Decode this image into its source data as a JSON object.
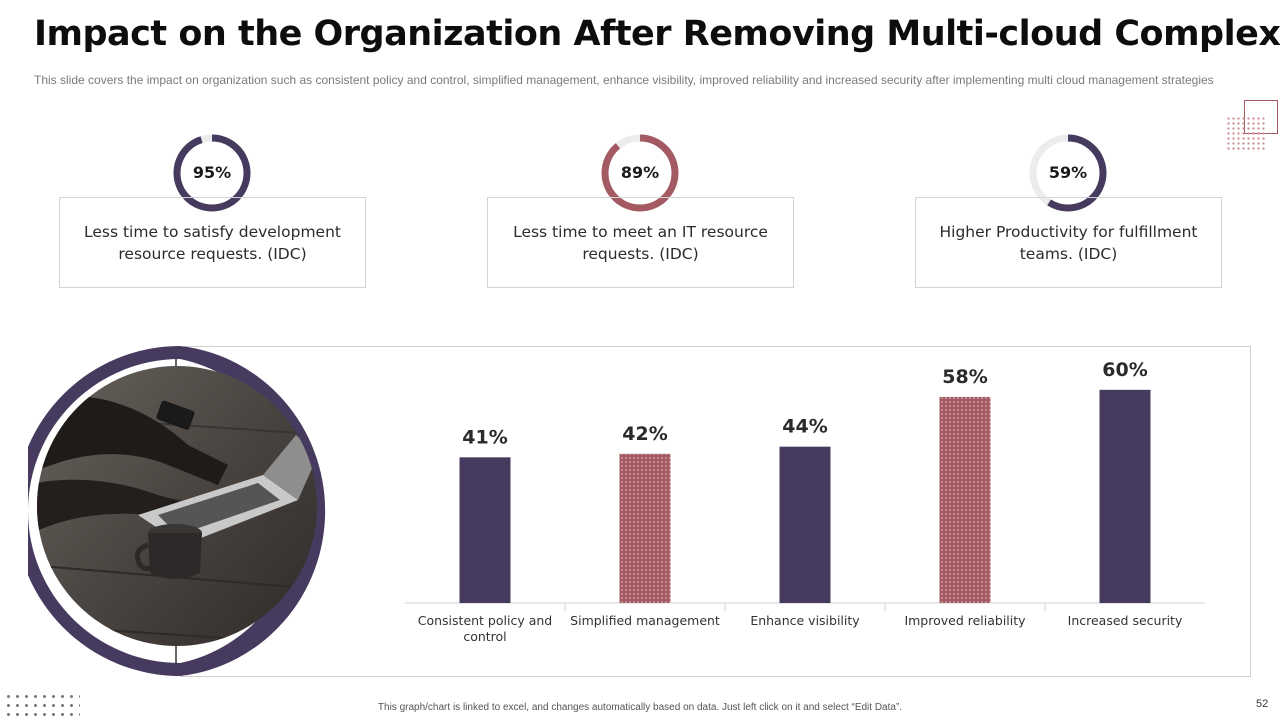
{
  "page": {
    "title": "Impact on the Organization After Removing Multi-cloud Complexity",
    "subtitle": "This slide covers the impact on organization  such as consistent policy and control, simplified management,  enhance visibility, improved  reliability and increased security after implementing multi cloud management  strategies",
    "footer": "This graph/chart  is linked to excel, and  changes  automatically  based on data.  Just left click on it and select “Edit Data”.",
    "page_number": "52"
  },
  "colors": {
    "purple": "#463a5e",
    "maroon": "#a35a62",
    "track": "#ececec"
  },
  "stats": [
    {
      "value": 95,
      "label": "95%",
      "text": "Less time to satisfy development resource requests. (IDC)",
      "color": "#463a5e"
    },
    {
      "value": 89,
      "label": "89%",
      "text": "Less time to meet an IT resource requests. (IDC)",
      "color": "#a35a62"
    },
    {
      "value": 59,
      "label": "59%",
      "text": "Higher Productivity for fulfillment teams. (IDC)",
      "color": "#463a5e"
    }
  ],
  "chart_data": {
    "type": "bar",
    "categories": [
      "Consistent policy and control",
      "Simplified management",
      "Enhance visibility",
      "Improved reliability",
      "Increased security"
    ],
    "values": [
      41,
      42,
      44,
      58,
      60
    ],
    "data_labels": [
      "41%",
      "42%",
      "44%",
      "58%",
      "60%"
    ],
    "bar_styles": [
      "solid",
      "dotted",
      "solid",
      "dotted",
      "solid"
    ],
    "ylim": [
      0,
      100
    ],
    "grid": false,
    "legend": "none",
    "title": "",
    "xlabel": "",
    "ylabel": ""
  },
  "image": {
    "icon": "laptop-photo",
    "alt": ""
  }
}
